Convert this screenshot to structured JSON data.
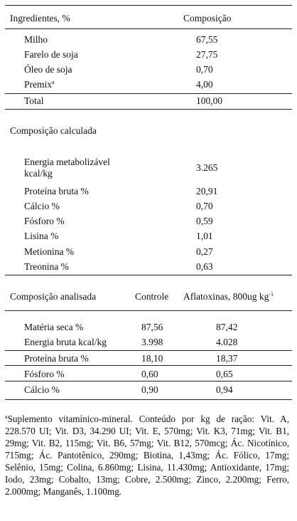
{
  "section1": {
    "header": {
      "col1": "Ingredientes, %",
      "col2": "Composição"
    },
    "rows": [
      {
        "label": "Milho",
        "value": "67,55"
      },
      {
        "label": "Farelo de soja",
        "value": "27,75"
      },
      {
        "label": "Óleo de soja",
        "value": "0,70"
      },
      {
        "label": "Premix",
        "sup": "a",
        "value": "4,00"
      }
    ],
    "total": {
      "label": "Total",
      "value": "100,00"
    }
  },
  "section2": {
    "title": "Composição calculada",
    "rows": [
      {
        "label_line1": "Energia  metabolizável",
        "label_line2": "kcal/kg",
        "value": "3.265"
      },
      {
        "label": "Proteína bruta %",
        "value": "20,91"
      },
      {
        "label": "Cálcio %",
        "value": "0,70"
      },
      {
        "label": "Fósforo %",
        "value": "0,59"
      },
      {
        "label": "Lisina %",
        "value": "1,01"
      },
      {
        "label": "Metionina %",
        "value": "0,27"
      },
      {
        "label": "Treonina %",
        "value": "0,63"
      }
    ]
  },
  "section3": {
    "header": {
      "col1": "Composição analisada",
      "col2": "Controle",
      "col3": "Aflatoxinas, 800ug kg",
      "col3_sup": "-1"
    },
    "rows": [
      {
        "label": "Matéria seca %",
        "controle": "87,56",
        "aflatoxinas": "87,42"
      },
      {
        "label": "Energia bruta kcal/kg",
        "controle": "3.998",
        "aflatoxinas": "4.028"
      },
      {
        "label": "Proteína bruta %",
        "controle": "18,10",
        "aflatoxinas": "18,37"
      },
      {
        "label": "Fósforo %",
        "controle": "0,60",
        "aflatoxinas": "0,65"
      },
      {
        "label": "Cálcio %",
        "controle": "0,90",
        "aflatoxinas": "0,94"
      }
    ]
  },
  "footnote": {
    "marker": "a",
    "text": "Suplemento vitamínico-mineral. Conteúdo por kg de ração: Vit. A, 228.570 UI; Vit. D3, 34.290 UI; Vit. E, 570mg; Vit. K3, 71mg; Vit. B1, 29mg; Vit. B2, 115mg; Vit. B6, 57mg; Vit. B12, 570mcg; Ác. Nicotínico, 715mg; Ác. Pantotênico, 290mg; Biotina, 1,43mg; Ác. Fólico, 17mg; Selênio, 15mg; Colina, 6.860mg; Lisina, 11.430mg; Antioxidante, 17mg; Iodo, 23mg; Cobalto, 13mg; Cobre, 2.500mg; Zinco, 2.200mg; Ferro, 2.000mg; Manganês, 1.100mg."
  }
}
